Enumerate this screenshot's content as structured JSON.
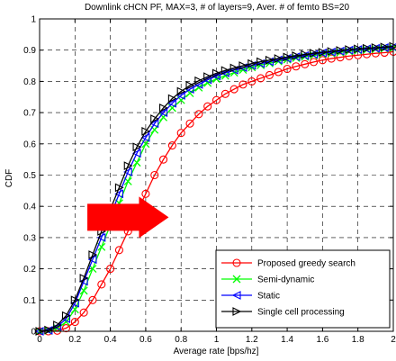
{
  "chart_data": {
    "type": "line",
    "title": "Downlink cHCN PF, MAX=3, # of layers=9, Aver. # of femto BS=20",
    "xlabel": "Average rate [bps/hz]",
    "ylabel": "CDF",
    "xlim": [
      0,
      2
    ],
    "ylim": [
      0,
      1
    ],
    "x_ticks": [
      "0",
      "0.2",
      "0.4",
      "0.6",
      "0.8",
      "1",
      "1.2",
      "1.4",
      "1.6",
      "1.8",
      "2"
    ],
    "y_ticks": [
      "0",
      "0.1",
      "0.2",
      "0.3",
      "0.4",
      "0.5",
      "0.6",
      "0.7",
      "0.8",
      "0.9",
      "1"
    ],
    "x_tick_values": [
      0,
      0.2,
      0.4,
      0.6,
      0.8,
      1,
      1.2,
      1.4,
      1.6,
      1.8,
      2
    ],
    "y_tick_values": [
      0,
      0.1,
      0.2,
      0.3,
      0.4,
      0.5,
      0.6,
      0.7,
      0.8,
      0.9,
      1
    ],
    "grid": true,
    "legend_position": "bottom-right",
    "annotation": {
      "type": "arrow",
      "color": "#ff0000",
      "from": [
        0.27,
        0.365
      ],
      "to": [
        0.73,
        0.365
      ]
    },
    "series": [
      {
        "name": "Proposed greedy search",
        "color": "#ff0000",
        "marker": "circle",
        "x": [
          0,
          0.05,
          0.1,
          0.15,
          0.2,
          0.25,
          0.3,
          0.35,
          0.4,
          0.45,
          0.5,
          0.55,
          0.6,
          0.65,
          0.7,
          0.75,
          0.8,
          0.85,
          0.9,
          0.95,
          1.0,
          1.05,
          1.1,
          1.15,
          1.2,
          1.25,
          1.3,
          1.35,
          1.4,
          1.45,
          1.5,
          1.55,
          1.6,
          1.65,
          1.7,
          1.75,
          1.8,
          1.85,
          1.9,
          1.95,
          2.0
        ],
        "y": [
          0,
          0,
          0.002,
          0.01,
          0.03,
          0.06,
          0.1,
          0.15,
          0.2,
          0.26,
          0.32,
          0.38,
          0.44,
          0.5,
          0.55,
          0.595,
          0.635,
          0.665,
          0.695,
          0.72,
          0.74,
          0.76,
          0.775,
          0.79,
          0.8,
          0.81,
          0.82,
          0.83,
          0.84,
          0.848,
          0.855,
          0.862,
          0.868,
          0.873,
          0.877,
          0.881,
          0.884,
          0.887,
          0.89,
          0.892,
          0.895
        ]
      },
      {
        "name": "Semi-dynamic",
        "color": "#00ff00",
        "marker": "x",
        "x": [
          0,
          0.05,
          0.1,
          0.15,
          0.2,
          0.25,
          0.3,
          0.35,
          0.4,
          0.45,
          0.5,
          0.55,
          0.6,
          0.65,
          0.7,
          0.75,
          0.8,
          0.85,
          0.9,
          0.95,
          1.0,
          1.05,
          1.1,
          1.15,
          1.2,
          1.25,
          1.3,
          1.35,
          1.4,
          1.45,
          1.5,
          1.55,
          1.6,
          1.65,
          1.7,
          1.75,
          1.8,
          1.85,
          1.9,
          1.95,
          2.0
        ],
        "y": [
          0,
          0.002,
          0.01,
          0.03,
          0.07,
          0.13,
          0.2,
          0.27,
          0.34,
          0.41,
          0.48,
          0.54,
          0.6,
          0.645,
          0.685,
          0.715,
          0.74,
          0.762,
          0.78,
          0.795,
          0.808,
          0.818,
          0.828,
          0.837,
          0.845,
          0.852,
          0.858,
          0.864,
          0.87,
          0.875,
          0.879,
          0.883,
          0.887,
          0.89,
          0.893,
          0.896,
          0.899,
          0.901,
          0.903,
          0.905,
          0.907
        ]
      },
      {
        "name": "Static",
        "color": "#0000ff",
        "marker": "triangle-left",
        "x": [
          0,
          0.05,
          0.1,
          0.15,
          0.2,
          0.25,
          0.3,
          0.35,
          0.4,
          0.45,
          0.5,
          0.55,
          0.6,
          0.65,
          0.7,
          0.75,
          0.8,
          0.85,
          0.9,
          0.95,
          1.0,
          1.05,
          1.1,
          1.15,
          1.2,
          1.25,
          1.3,
          1.35,
          1.4,
          1.45,
          1.5,
          1.55,
          1.6,
          1.65,
          1.7,
          1.75,
          1.8,
          1.85,
          1.9,
          1.95,
          2.0
        ],
        "y": [
          0,
          0.003,
          0.015,
          0.04,
          0.09,
          0.16,
          0.23,
          0.3,
          0.37,
          0.44,
          0.51,
          0.57,
          0.62,
          0.665,
          0.7,
          0.73,
          0.755,
          0.775,
          0.79,
          0.805,
          0.817,
          0.827,
          0.836,
          0.844,
          0.851,
          0.857,
          0.863,
          0.869,
          0.874,
          0.879,
          0.883,
          0.887,
          0.891,
          0.894,
          0.897,
          0.9,
          0.902,
          0.904,
          0.906,
          0.908,
          0.91
        ]
      },
      {
        "name": "Single cell processing",
        "color": "#000000",
        "marker": "triangle-right",
        "x": [
          0,
          0.05,
          0.1,
          0.15,
          0.2,
          0.25,
          0.3,
          0.35,
          0.4,
          0.45,
          0.5,
          0.55,
          0.6,
          0.65,
          0.7,
          0.75,
          0.8,
          0.85,
          0.9,
          0.95,
          1.0,
          1.05,
          1.1,
          1.15,
          1.2,
          1.25,
          1.3,
          1.35,
          1.4,
          1.45,
          1.5,
          1.55,
          1.6,
          1.65,
          1.7,
          1.75,
          1.8,
          1.85,
          1.9,
          1.95,
          2.0
        ],
        "y": [
          0,
          0.004,
          0.02,
          0.05,
          0.1,
          0.17,
          0.245,
          0.32,
          0.39,
          0.46,
          0.53,
          0.59,
          0.64,
          0.68,
          0.715,
          0.745,
          0.768,
          0.787,
          0.802,
          0.815,
          0.826,
          0.835,
          0.843,
          0.85,
          0.857,
          0.863,
          0.868,
          0.873,
          0.878,
          0.882,
          0.886,
          0.89,
          0.893,
          0.896,
          0.899,
          0.902,
          0.904,
          0.906,
          0.908,
          0.91,
          0.912
        ]
      }
    ]
  }
}
